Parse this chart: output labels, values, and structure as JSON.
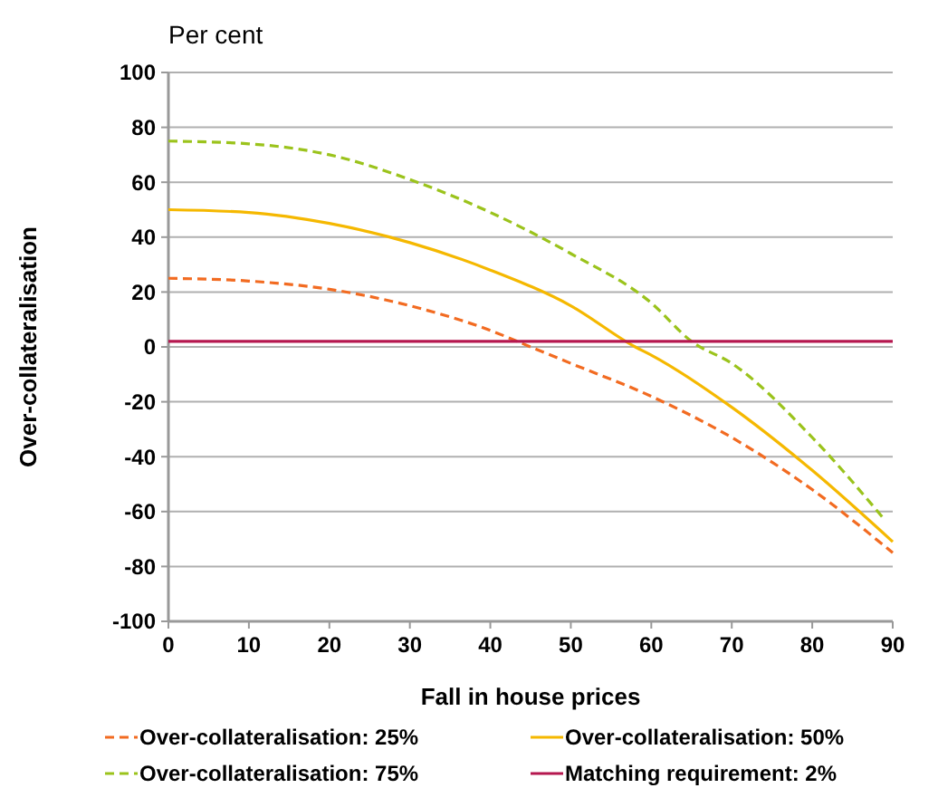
{
  "chart_data": {
    "type": "line",
    "title": "Per cent",
    "xlabel": "Fall in house prices",
    "ylabel": "Over-collateralisation",
    "xlim": [
      0,
      90
    ],
    "xticks": [
      0,
      10,
      20,
      30,
      40,
      50,
      60,
      70,
      80,
      90
    ],
    "ylim": [
      -100,
      100
    ],
    "yticks": [
      -100,
      -80,
      -60,
      -40,
      -20,
      0,
      20,
      40,
      60,
      80,
      100
    ],
    "grid": "y",
    "legend": "bottom",
    "series": [
      {
        "name": "Over-collateralisation: 25%",
        "color": "#f26b21",
        "line_style": "dashed",
        "x": [
          0,
          10,
          20,
          30,
          40,
          45,
          50,
          60,
          70,
          80,
          90
        ],
        "values": [
          25,
          24,
          21,
          15,
          6,
          0,
          -6,
          -18,
          -33,
          -52,
          -75
        ]
      },
      {
        "name": "Over-collateralisation: 50%",
        "color": "#f5b800",
        "line_style": "solid",
        "x": [
          0,
          10,
          20,
          30,
          40,
          50,
          58,
          60,
          70,
          80,
          90
        ],
        "values": [
          50,
          49,
          45,
          38,
          28,
          15,
          0,
          -3,
          -22,
          -45,
          -71
        ]
      },
      {
        "name": "Over-collateralisation: 75%",
        "color": "#9bc31c",
        "line_style": "dashed",
        "x": [
          0,
          10,
          20,
          30,
          40,
          50,
          60,
          65,
          70,
          80,
          89
        ],
        "values": [
          75,
          74,
          70,
          61,
          49,
          34,
          16,
          2,
          -6,
          -33,
          -63
        ]
      },
      {
        "name": "Matching requirement: 2%",
        "color": "#b5174f",
        "line_style": "solid",
        "x": [
          0,
          90
        ],
        "values": [
          2,
          2
        ]
      }
    ]
  }
}
